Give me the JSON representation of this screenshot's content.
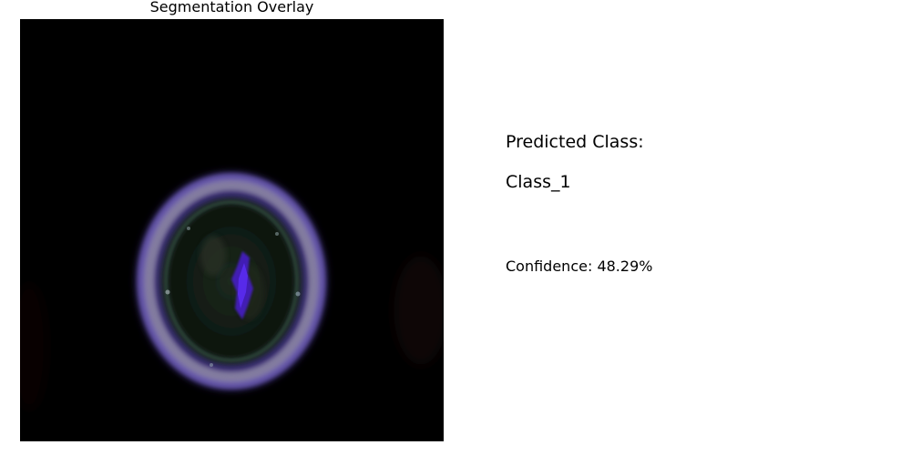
{
  "overlay": {
    "title": "Segmentation Overlay"
  },
  "prediction": {
    "heading": "Predicted Class:",
    "class_name": "Class_1",
    "confidence_text": "Confidence: 48.29%"
  },
  "colors": {
    "background": "#000000",
    "ring_outer": "#5a4aa8",
    "ring_mid": "#8f8a86",
    "interior": "#0f1a12",
    "segment": "#4a1fd0"
  }
}
